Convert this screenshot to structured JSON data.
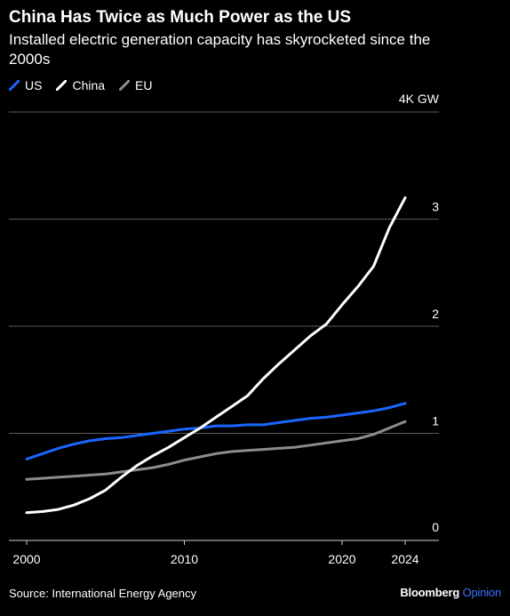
{
  "title": "China Has Twice as Much Power as the US",
  "subtitle": "Installed electric generation capacity has skyrocketed since the 2000s",
  "source": "Source: International Energy Agency",
  "brand": {
    "name": "Bloomberg",
    "accent": "Opinion"
  },
  "colors": {
    "US": "#1a66ff",
    "China": "#ffffff",
    "EU": "#8c8c8c",
    "grid": "#5a5a5a",
    "background": "#000000"
  },
  "chart_data": {
    "type": "line",
    "title": "China Has Twice as Much Power as the US",
    "subtitle": "Installed electric generation capacity has skyrocketed since the 2000s",
    "unit": "4K GW",
    "x": [
      2000,
      2001,
      2002,
      2003,
      2004,
      2005,
      2006,
      2007,
      2008,
      2009,
      2010,
      2011,
      2012,
      2013,
      2014,
      2015,
      2016,
      2017,
      2018,
      2019,
      2020,
      2021,
      2022,
      2023,
      2024
    ],
    "series": [
      {
        "name": "US",
        "color": "#1a66ff",
        "values": [
          0.76,
          0.81,
          0.86,
          0.9,
          0.93,
          0.95,
          0.96,
          0.98,
          1.0,
          1.02,
          1.04,
          1.05,
          1.07,
          1.07,
          1.08,
          1.08,
          1.1,
          1.12,
          1.14,
          1.15,
          1.17,
          1.19,
          1.21,
          1.24,
          1.28
        ]
      },
      {
        "name": "China",
        "color": "#ffffff",
        "values": [
          0.26,
          0.27,
          0.29,
          0.33,
          0.39,
          0.47,
          0.59,
          0.7,
          0.79,
          0.87,
          0.96,
          1.05,
          1.15,
          1.25,
          1.35,
          1.51,
          1.65,
          1.78,
          1.91,
          2.02,
          2.2,
          2.37,
          2.56,
          2.92,
          3.2
        ]
      },
      {
        "name": "EU",
        "color": "#8c8c8c",
        "values": [
          0.57,
          0.58,
          0.59,
          0.6,
          0.61,
          0.62,
          0.64,
          0.66,
          0.68,
          0.71,
          0.75,
          0.78,
          0.81,
          0.83,
          0.84,
          0.85,
          0.86,
          0.87,
          0.89,
          0.91,
          0.93,
          0.95,
          0.99,
          1.05,
          1.11
        ]
      }
    ],
    "ylim": [
      0,
      4
    ],
    "y_ticks": [
      0,
      1,
      2,
      3,
      4
    ],
    "y_tick_labels": [
      "0",
      "1",
      "2",
      "3",
      "4K GW"
    ],
    "x_ticks": [
      2000,
      2010,
      2020,
      2024
    ],
    "x_tick_labels": [
      "2000",
      "2010",
      "2020",
      "2024"
    ],
    "xlim": [
      2000,
      2024
    ],
    "grid": true,
    "legend": "top-left"
  }
}
